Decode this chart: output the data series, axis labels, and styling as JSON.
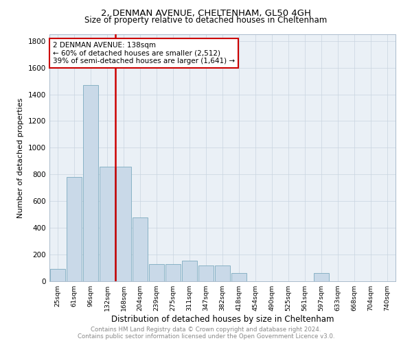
{
  "title": "2, DENMAN AVENUE, CHELTENHAM, GL50 4GH",
  "subtitle": "Size of property relative to detached houses in Cheltenham",
  "xlabel": "Distribution of detached houses by size in Cheltenham",
  "ylabel": "Number of detached properties",
  "categories": [
    "25sqm",
    "61sqm",
    "96sqm",
    "132sqm",
    "168sqm",
    "204sqm",
    "239sqm",
    "275sqm",
    "311sqm",
    "347sqm",
    "382sqm",
    "418sqm",
    "454sqm",
    "490sqm",
    "525sqm",
    "561sqm",
    "597sqm",
    "633sqm",
    "668sqm",
    "704sqm",
    "740sqm"
  ],
  "values": [
    95,
    780,
    1470,
    860,
    860,
    480,
    130,
    130,
    155,
    120,
    120,
    60,
    0,
    0,
    0,
    0,
    60,
    0,
    0,
    0,
    0
  ],
  "bar_color": "#c9d9e8",
  "bar_edge_color": "#7baabf",
  "vline_color": "#cc0000",
  "vline_pos": 3.5,
  "annotation_text": "2 DENMAN AVENUE: 138sqm\n← 60% of detached houses are smaller (2,512)\n39% of semi-detached houses are larger (1,641) →",
  "annotation_box_edgecolor": "#cc0000",
  "ylim": [
    0,
    1850
  ],
  "yticks": [
    0,
    200,
    400,
    600,
    800,
    1000,
    1200,
    1400,
    1600,
    1800
  ],
  "grid_color": "#c8d4e0",
  "bg_color": "#eaf0f6",
  "footer_line1": "Contains HM Land Registry data © Crown copyright and database right 2024.",
  "footer_line2": "Contains public sector information licensed under the Open Government Licence v3.0."
}
